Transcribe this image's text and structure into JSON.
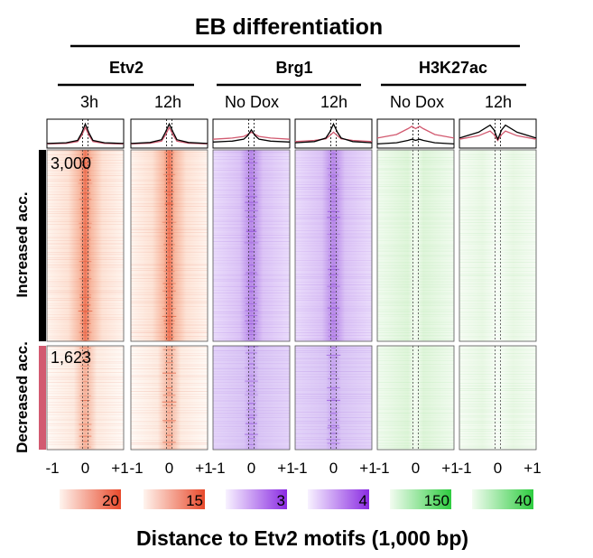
{
  "title": "EB differentiation",
  "groups": [
    {
      "name": "Etv2",
      "conditions": [
        "3h",
        "12h"
      ]
    },
    {
      "name": "Brg1",
      "conditions": [
        "No Dox",
        "12h"
      ]
    },
    {
      "name": "H3K27ac",
      "conditions": [
        "No Dox",
        "12h"
      ]
    }
  ],
  "row_clusters": [
    {
      "label": "Increased acc.",
      "count_label": "3,000",
      "color": "#000000"
    },
    {
      "label": "Decreased acc.",
      "count_label": "1,623",
      "color": "#d25a70"
    }
  ],
  "xaxis": {
    "ticks": [
      "-1",
      "0",
      "+1"
    ],
    "label": "Distance to Etv2 motifs (1,000 bp)"
  },
  "colorbars": [
    {
      "max_label": "20",
      "color": "#e84a2c"
    },
    {
      "max_label": "15",
      "color": "#e84a2c"
    },
    {
      "max_label": "3",
      "color": "#8a2be2"
    },
    {
      "max_label": "4",
      "color": "#8a2be2"
    },
    {
      "max_label": "150",
      "color": "#2ecc40"
    },
    {
      "max_label": "40",
      "color": "#2ecc40"
    }
  ],
  "chart_data": {
    "type": "heatmap",
    "title": "EB differentiation",
    "xlabel": "Distance to Etv2 motifs (1,000 bp)",
    "xlim": [
      -1,
      1
    ],
    "x_ticks": [
      "-1",
      "0",
      "+1"
    ],
    "columns": [
      "Etv2 3h",
      "Etv2 12h",
      "Brg1 No Dox",
      "Brg1 12h",
      "H3K27ac No Dox",
      "H3K27ac 12h"
    ],
    "row_groups": [
      {
        "name": "Increased acc.",
        "n_regions": 3000
      },
      {
        "name": "Decreased acc.",
        "n_regions": 1623
      }
    ],
    "colorbar_max": [
      20,
      15,
      3,
      4,
      150,
      40
    ],
    "profile_x": [
      -1,
      -0.5,
      -0.2,
      -0.1,
      0,
      0.1,
      0.2,
      0.5,
      1
    ],
    "profiles": [
      {
        "column": "Etv2 3h",
        "series": [
          {
            "cluster": "Increased acc.",
            "color": "#000000",
            "values": [
              0.12,
              0.15,
              0.25,
              0.55,
              0.95,
              0.55,
              0.25,
              0.15,
              0.12
            ]
          },
          {
            "cluster": "Decreased acc.",
            "color": "#d25a70",
            "values": [
              0.1,
              0.12,
              0.2,
              0.45,
              0.8,
              0.45,
              0.2,
              0.12,
              0.1
            ]
          }
        ]
      },
      {
        "column": "Etv2 12h",
        "series": [
          {
            "cluster": "Increased acc.",
            "color": "#000000",
            "values": [
              0.12,
              0.16,
              0.28,
              0.6,
              0.95,
              0.6,
              0.28,
              0.16,
              0.12
            ]
          },
          {
            "cluster": "Decreased acc.",
            "color": "#d25a70",
            "values": [
              0.1,
              0.13,
              0.22,
              0.48,
              0.8,
              0.48,
              0.22,
              0.13,
              0.1
            ]
          }
        ]
      },
      {
        "column": "Brg1 No Dox",
        "series": [
          {
            "cluster": "Increased acc.",
            "color": "#000000",
            "values": [
              0.18,
              0.22,
              0.3,
              0.45,
              0.7,
              0.45,
              0.3,
              0.22,
              0.18
            ]
          },
          {
            "cluster": "Decreased acc.",
            "color": "#d25a70",
            "values": [
              0.3,
              0.35,
              0.42,
              0.5,
              0.6,
              0.5,
              0.42,
              0.35,
              0.3
            ]
          }
        ]
      },
      {
        "column": "Brg1 12h",
        "series": [
          {
            "cluster": "Increased acc.",
            "color": "#000000",
            "values": [
              0.15,
              0.2,
              0.35,
              0.6,
              0.95,
              0.6,
              0.35,
              0.2,
              0.15
            ]
          },
          {
            "cluster": "Decreased acc.",
            "color": "#d25a70",
            "values": [
              0.2,
              0.25,
              0.32,
              0.45,
              0.6,
              0.45,
              0.32,
              0.25,
              0.2
            ]
          }
        ]
      },
      {
        "column": "H3K27ac No Dox",
        "series": [
          {
            "cluster": "Increased acc.",
            "color": "#000000",
            "values": [
              0.1,
              0.15,
              0.25,
              0.3,
              0.25,
              0.3,
              0.25,
              0.15,
              0.1
            ]
          },
          {
            "cluster": "Decreased acc.",
            "color": "#d25a70",
            "values": [
              0.35,
              0.5,
              0.75,
              0.85,
              0.75,
              0.85,
              0.75,
              0.5,
              0.35
            ]
          }
        ]
      },
      {
        "column": "H3K27ac 12h",
        "series": [
          {
            "cluster": "Increased acc.",
            "color": "#000000",
            "values": [
              0.35,
              0.6,
              0.9,
              0.7,
              0.3,
              0.7,
              0.9,
              0.6,
              0.35
            ]
          },
          {
            "cluster": "Decreased acc.",
            "color": "#d25a70",
            "values": [
              0.3,
              0.45,
              0.65,
              0.5,
              0.25,
              0.5,
              0.65,
              0.45,
              0.3
            ]
          }
        ]
      }
    ]
  }
}
